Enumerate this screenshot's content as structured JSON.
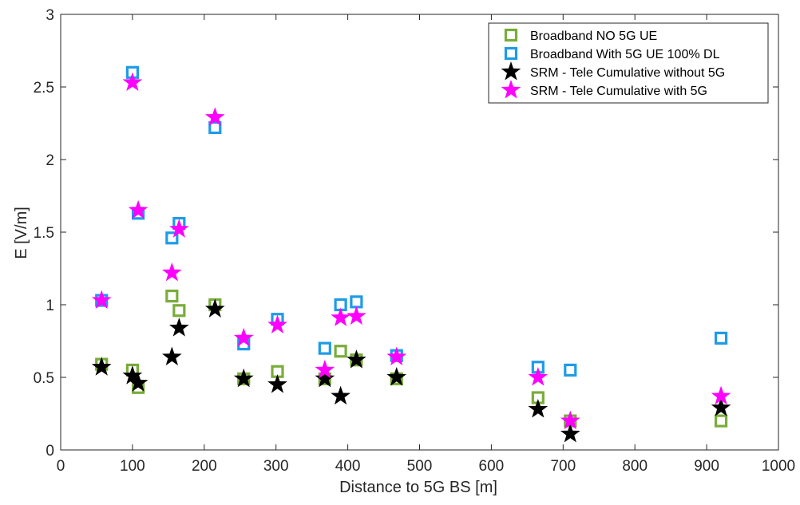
{
  "chart_data": {
    "type": "scatter",
    "xlabel": "Distance to 5G BS [m]",
    "ylabel": "E [V/m]",
    "xlim": [
      0,
      1000
    ],
    "ylim": [
      0,
      3
    ],
    "xticks": [
      "0",
      "100",
      "200",
      "300",
      "400",
      "500",
      "600",
      "700",
      "800",
      "900",
      "1000"
    ],
    "yticks": [
      "0",
      "0.5",
      "1",
      "1.5",
      "2",
      "2.5",
      "3"
    ],
    "legend_position": "top-right",
    "grid": false,
    "series": [
      {
        "name": "Broadband NO 5G UE",
        "marker": "square",
        "color": "#7aac3a",
        "points": [
          [
            57,
            0.59
          ],
          [
            100,
            0.55
          ],
          [
            108,
            0.43
          ],
          [
            155,
            1.06
          ],
          [
            165,
            0.96
          ],
          [
            215,
            1.0
          ],
          [
            255,
            0.49
          ],
          [
            302,
            0.54
          ],
          [
            368,
            0.49
          ],
          [
            390,
            0.68
          ],
          [
            412,
            0.62
          ],
          [
            468,
            0.49
          ],
          [
            665,
            0.36
          ],
          [
            710,
            0.2
          ],
          [
            920,
            0.2
          ]
        ]
      },
      {
        "name": "Broadband With 5G UE 100% DL",
        "marker": "square",
        "color": "#1e9be8",
        "points": [
          [
            57,
            1.03
          ],
          [
            100,
            2.6
          ],
          [
            108,
            1.63
          ],
          [
            155,
            1.46
          ],
          [
            165,
            1.56
          ],
          [
            215,
            2.22
          ],
          [
            255,
            0.73
          ],
          [
            302,
            0.9
          ],
          [
            368,
            0.7
          ],
          [
            390,
            1.0
          ],
          [
            412,
            1.02
          ],
          [
            468,
            0.65
          ],
          [
            665,
            0.57
          ],
          [
            710,
            0.55
          ],
          [
            920,
            0.77
          ]
        ]
      },
      {
        "name": "SRM - Tele Cumulative without 5G",
        "marker": "star",
        "color": "#000000",
        "points": [
          [
            57,
            0.57
          ],
          [
            100,
            0.51
          ],
          [
            108,
            0.46
          ],
          [
            155,
            0.64
          ],
          [
            165,
            0.84
          ],
          [
            215,
            0.97
          ],
          [
            255,
            0.49
          ],
          [
            302,
            0.45
          ],
          [
            368,
            0.49
          ],
          [
            390,
            0.37
          ],
          [
            412,
            0.62
          ],
          [
            468,
            0.5
          ],
          [
            665,
            0.28
          ],
          [
            710,
            0.11
          ],
          [
            920,
            0.29
          ]
        ]
      },
      {
        "name": "SRM - Tele Cumulative with 5G",
        "marker": "star",
        "color": "#ff00ff",
        "points": [
          [
            57,
            1.03
          ],
          [
            100,
            2.53
          ],
          [
            108,
            1.65
          ],
          [
            155,
            1.22
          ],
          [
            165,
            1.52
          ],
          [
            215,
            2.29
          ],
          [
            255,
            0.77
          ],
          [
            302,
            0.86
          ],
          [
            368,
            0.55
          ],
          [
            390,
            0.91
          ],
          [
            412,
            0.92
          ],
          [
            468,
            0.64
          ],
          [
            665,
            0.5
          ],
          [
            710,
            0.2
          ],
          [
            920,
            0.37
          ]
        ]
      }
    ]
  }
}
